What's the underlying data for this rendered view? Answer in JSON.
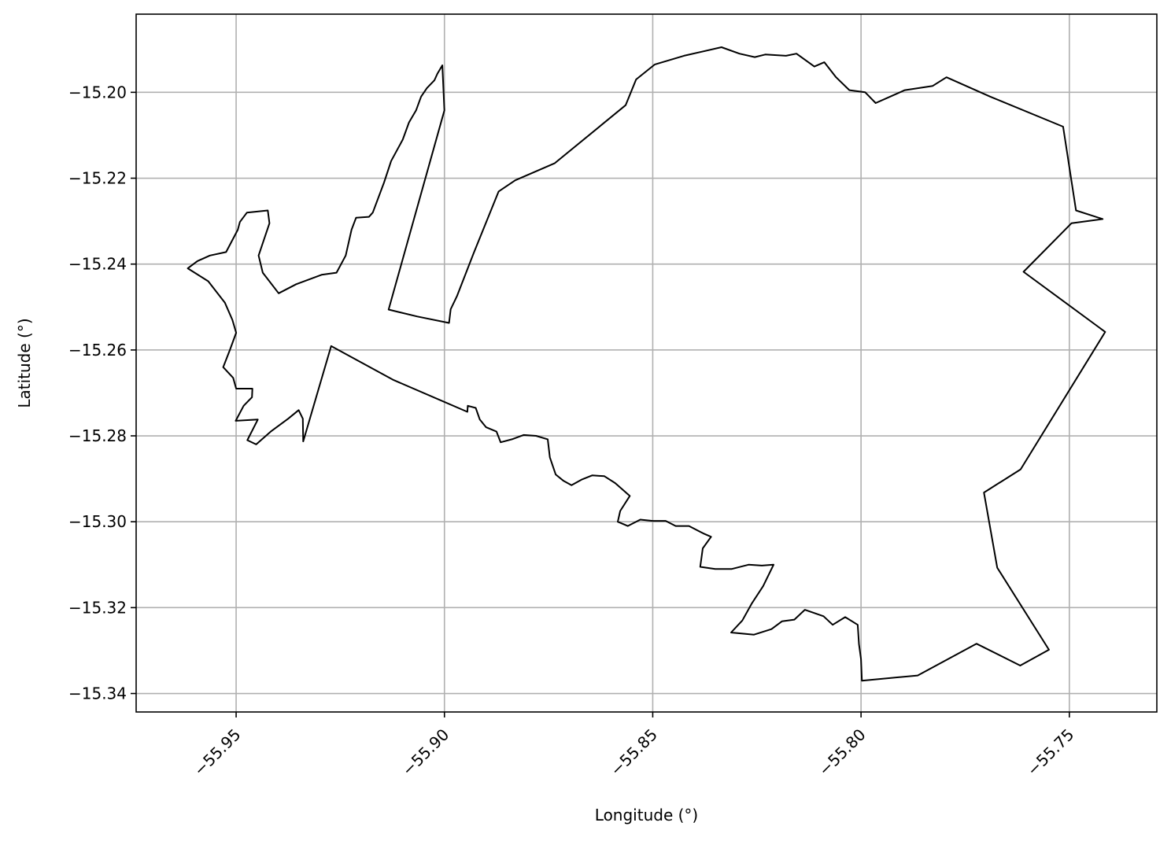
{
  "chart_data": {
    "type": "map",
    "title": "",
    "xlabel": "Longitude (°)",
    "ylabel": "Latitude (°)",
    "xlim": [
      -55.974,
      -55.729
    ],
    "ylim": [
      -15.3443,
      -15.1818
    ],
    "x_ticks": [
      {
        "value": -55.95,
        "label": "−55.95"
      },
      {
        "value": -55.9,
        "label": "−55.90"
      },
      {
        "value": -55.85,
        "label": "−55.85"
      },
      {
        "value": -55.8,
        "label": "−55.80"
      },
      {
        "value": -55.75,
        "label": "−55.75"
      }
    ],
    "y_ticks": [
      {
        "value": -15.2,
        "label": "−15.20"
      },
      {
        "value": -15.22,
        "label": "−15.22"
      },
      {
        "value": -15.24,
        "label": "−15.24"
      },
      {
        "value": -15.26,
        "label": "−15.26"
      },
      {
        "value": -15.28,
        "label": "−15.28"
      },
      {
        "value": -15.3,
        "label": "−15.30"
      },
      {
        "value": -15.32,
        "label": "−15.32"
      },
      {
        "value": -15.34,
        "label": "−15.34"
      }
    ],
    "x_tick_rotation_deg": 45,
    "grid": true,
    "legend": false,
    "outline_color": "#000000",
    "grid_color": "#b0b0b0",
    "series": [
      {
        "kind": "polygon",
        "coordinates": [
          [
            -55.9005,
            -15.1937
          ],
          [
            -55.9017,
            -15.1957
          ],
          [
            -55.9024,
            -15.1972
          ],
          [
            -55.9042,
            -15.199
          ],
          [
            -55.9056,
            -15.201
          ],
          [
            -55.9068,
            -15.2042
          ],
          [
            -55.9085,
            -15.207
          ],
          [
            -55.91,
            -15.211
          ],
          [
            -55.9128,
            -15.216
          ],
          [
            -55.9145,
            -15.221
          ],
          [
            -55.9172,
            -15.228
          ],
          [
            -55.9181,
            -15.229
          ],
          [
            -55.9212,
            -15.2292
          ],
          [
            -55.9223,
            -15.232
          ],
          [
            -55.9237,
            -15.238
          ],
          [
            -55.9259,
            -15.242
          ],
          [
            -55.9295,
            -15.2425
          ],
          [
            -55.9356,
            -15.2447
          ],
          [
            -55.9398,
            -15.2468
          ],
          [
            -55.9436,
            -15.242
          ],
          [
            -55.9446,
            -15.238
          ],
          [
            -55.942,
            -15.2305
          ],
          [
            -55.9424,
            -15.2275
          ],
          [
            -55.9474,
            -15.228
          ],
          [
            -55.9491,
            -15.2302
          ],
          [
            -55.9496,
            -15.232
          ],
          [
            -55.9524,
            -15.2372
          ],
          [
            -55.9563,
            -15.238
          ],
          [
            -55.9593,
            -15.2393
          ],
          [
            -55.9616,
            -15.241
          ],
          [
            -55.9567,
            -15.244
          ],
          [
            -55.9527,
            -15.249
          ],
          [
            -55.9509,
            -15.253
          ],
          [
            -55.95,
            -15.256
          ],
          [
            -55.9515,
            -15.26
          ],
          [
            -55.9531,
            -15.264
          ],
          [
            -55.9507,
            -15.2665
          ],
          [
            -55.95,
            -15.269
          ],
          [
            -55.9461,
            -15.269
          ],
          [
            -55.9462,
            -15.271
          ],
          [
            -55.9482,
            -15.273
          ],
          [
            -55.9501,
            -15.2765
          ],
          [
            -55.9448,
            -15.2762
          ],
          [
            -55.9473,
            -15.281
          ],
          [
            -55.9452,
            -15.282
          ],
          [
            -55.9417,
            -15.279
          ],
          [
            -55.9375,
            -15.276
          ],
          [
            -55.935,
            -15.274
          ],
          [
            -55.934,
            -15.276
          ],
          [
            -55.9339,
            -15.2813
          ],
          [
            -55.9272,
            -15.2591
          ],
          [
            -55.9122,
            -15.267
          ],
          [
            -55.8945,
            -15.2744
          ],
          [
            -55.8944,
            -15.273
          ],
          [
            -55.8925,
            -15.2735
          ],
          [
            -55.8915,
            -15.2762
          ],
          [
            -55.89,
            -15.278
          ],
          [
            -55.8875,
            -15.279
          ],
          [
            -55.8865,
            -15.2815
          ],
          [
            -55.8838,
            -15.2808
          ],
          [
            -55.881,
            -15.2798
          ],
          [
            -55.878,
            -15.28
          ],
          [
            -55.8752,
            -15.2808
          ],
          [
            -55.8747,
            -15.285
          ],
          [
            -55.8733,
            -15.289
          ],
          [
            -55.8714,
            -15.2905
          ],
          [
            -55.8695,
            -15.2915
          ],
          [
            -55.8671,
            -15.2902
          ],
          [
            -55.8645,
            -15.2892
          ],
          [
            -55.8616,
            -15.2894
          ],
          [
            -55.859,
            -15.291
          ],
          [
            -55.8555,
            -15.294
          ],
          [
            -55.8578,
            -15.2975
          ],
          [
            -55.8584,
            -15.3
          ],
          [
            -55.856,
            -15.301
          ],
          [
            -55.853,
            -15.2995
          ],
          [
            -55.85,
            -15.2998
          ],
          [
            -55.8469,
            -15.2998
          ],
          [
            -55.8445,
            -15.301
          ],
          [
            -55.8413,
            -15.301
          ],
          [
            -55.8379,
            -15.3027
          ],
          [
            -55.836,
            -15.3035
          ],
          [
            -55.838,
            -15.3062
          ],
          [
            -55.8386,
            -15.3105
          ],
          [
            -55.835,
            -15.311
          ],
          [
            -55.831,
            -15.311
          ],
          [
            -55.827,
            -15.31
          ],
          [
            -55.8238,
            -15.3102
          ],
          [
            -55.821,
            -15.31
          ],
          [
            -55.8235,
            -15.315
          ],
          [
            -55.8262,
            -15.319
          ],
          [
            -55.8285,
            -15.323
          ],
          [
            -55.8312,
            -15.3258
          ],
          [
            -55.8257,
            -15.3263
          ],
          [
            -55.8215,
            -15.325
          ],
          [
            -55.819,
            -15.3232
          ],
          [
            -55.816,
            -15.3228
          ],
          [
            -55.8135,
            -15.3205
          ],
          [
            -55.809,
            -15.322
          ],
          [
            -55.8068,
            -15.324
          ],
          [
            -55.8038,
            -15.3222
          ],
          [
            -55.8008,
            -15.324
          ],
          [
            -55.8005,
            -15.3285
          ],
          [
            -55.8,
            -15.332
          ],
          [
            -55.7998,
            -15.337
          ],
          [
            -55.7864,
            -15.3358
          ],
          [
            -55.7723,
            -15.3284
          ],
          [
            -55.7618,
            -15.3335
          ],
          [
            -55.7549,
            -15.3298
          ],
          [
            -55.7673,
            -15.3107
          ],
          [
            -55.7705,
            -15.2932
          ],
          [
            -55.7617,
            -15.2878
          ],
          [
            -55.7414,
            -15.2558
          ],
          [
            -55.761,
            -15.2418
          ],
          [
            -55.7495,
            -15.2305
          ],
          [
            -55.742,
            -15.2295
          ],
          [
            -55.7484,
            -15.2275
          ],
          [
            -55.7515,
            -15.208
          ],
          [
            -55.769,
            -15.201
          ],
          [
            -55.7795,
            -15.1965
          ],
          [
            -55.7828,
            -15.1985
          ],
          [
            -55.7895,
            -15.1995
          ],
          [
            -55.7965,
            -15.2025
          ],
          [
            -55.799,
            -15.2
          ],
          [
            -55.8028,
            -15.1995
          ],
          [
            -55.806,
            -15.1965
          ],
          [
            -55.8088,
            -15.193
          ],
          [
            -55.8112,
            -15.194
          ],
          [
            -55.8155,
            -15.191
          ],
          [
            -55.818,
            -15.1915
          ],
          [
            -55.823,
            -15.1912
          ],
          [
            -55.8255,
            -15.1918
          ],
          [
            -55.8292,
            -15.191
          ],
          [
            -55.8335,
            -15.1895
          ],
          [
            -55.8425,
            -15.1915
          ],
          [
            -55.8495,
            -15.1935
          ],
          [
            -55.854,
            -15.197
          ],
          [
            -55.8565,
            -15.203
          ],
          [
            -55.8735,
            -15.2165
          ],
          [
            -55.883,
            -15.2205
          ],
          [
            -55.887,
            -15.2231
          ],
          [
            -55.893,
            -15.2375
          ],
          [
            -55.897,
            -15.2475
          ],
          [
            -55.8985,
            -15.2505
          ],
          [
            -55.8989,
            -15.2537
          ],
          [
            -55.9065,
            -15.2522
          ],
          [
            -55.9134,
            -15.2506
          ],
          [
            -55.9,
            -15.2042
          ],
          [
            -55.9005,
            -15.1937
          ]
        ]
      }
    ]
  }
}
